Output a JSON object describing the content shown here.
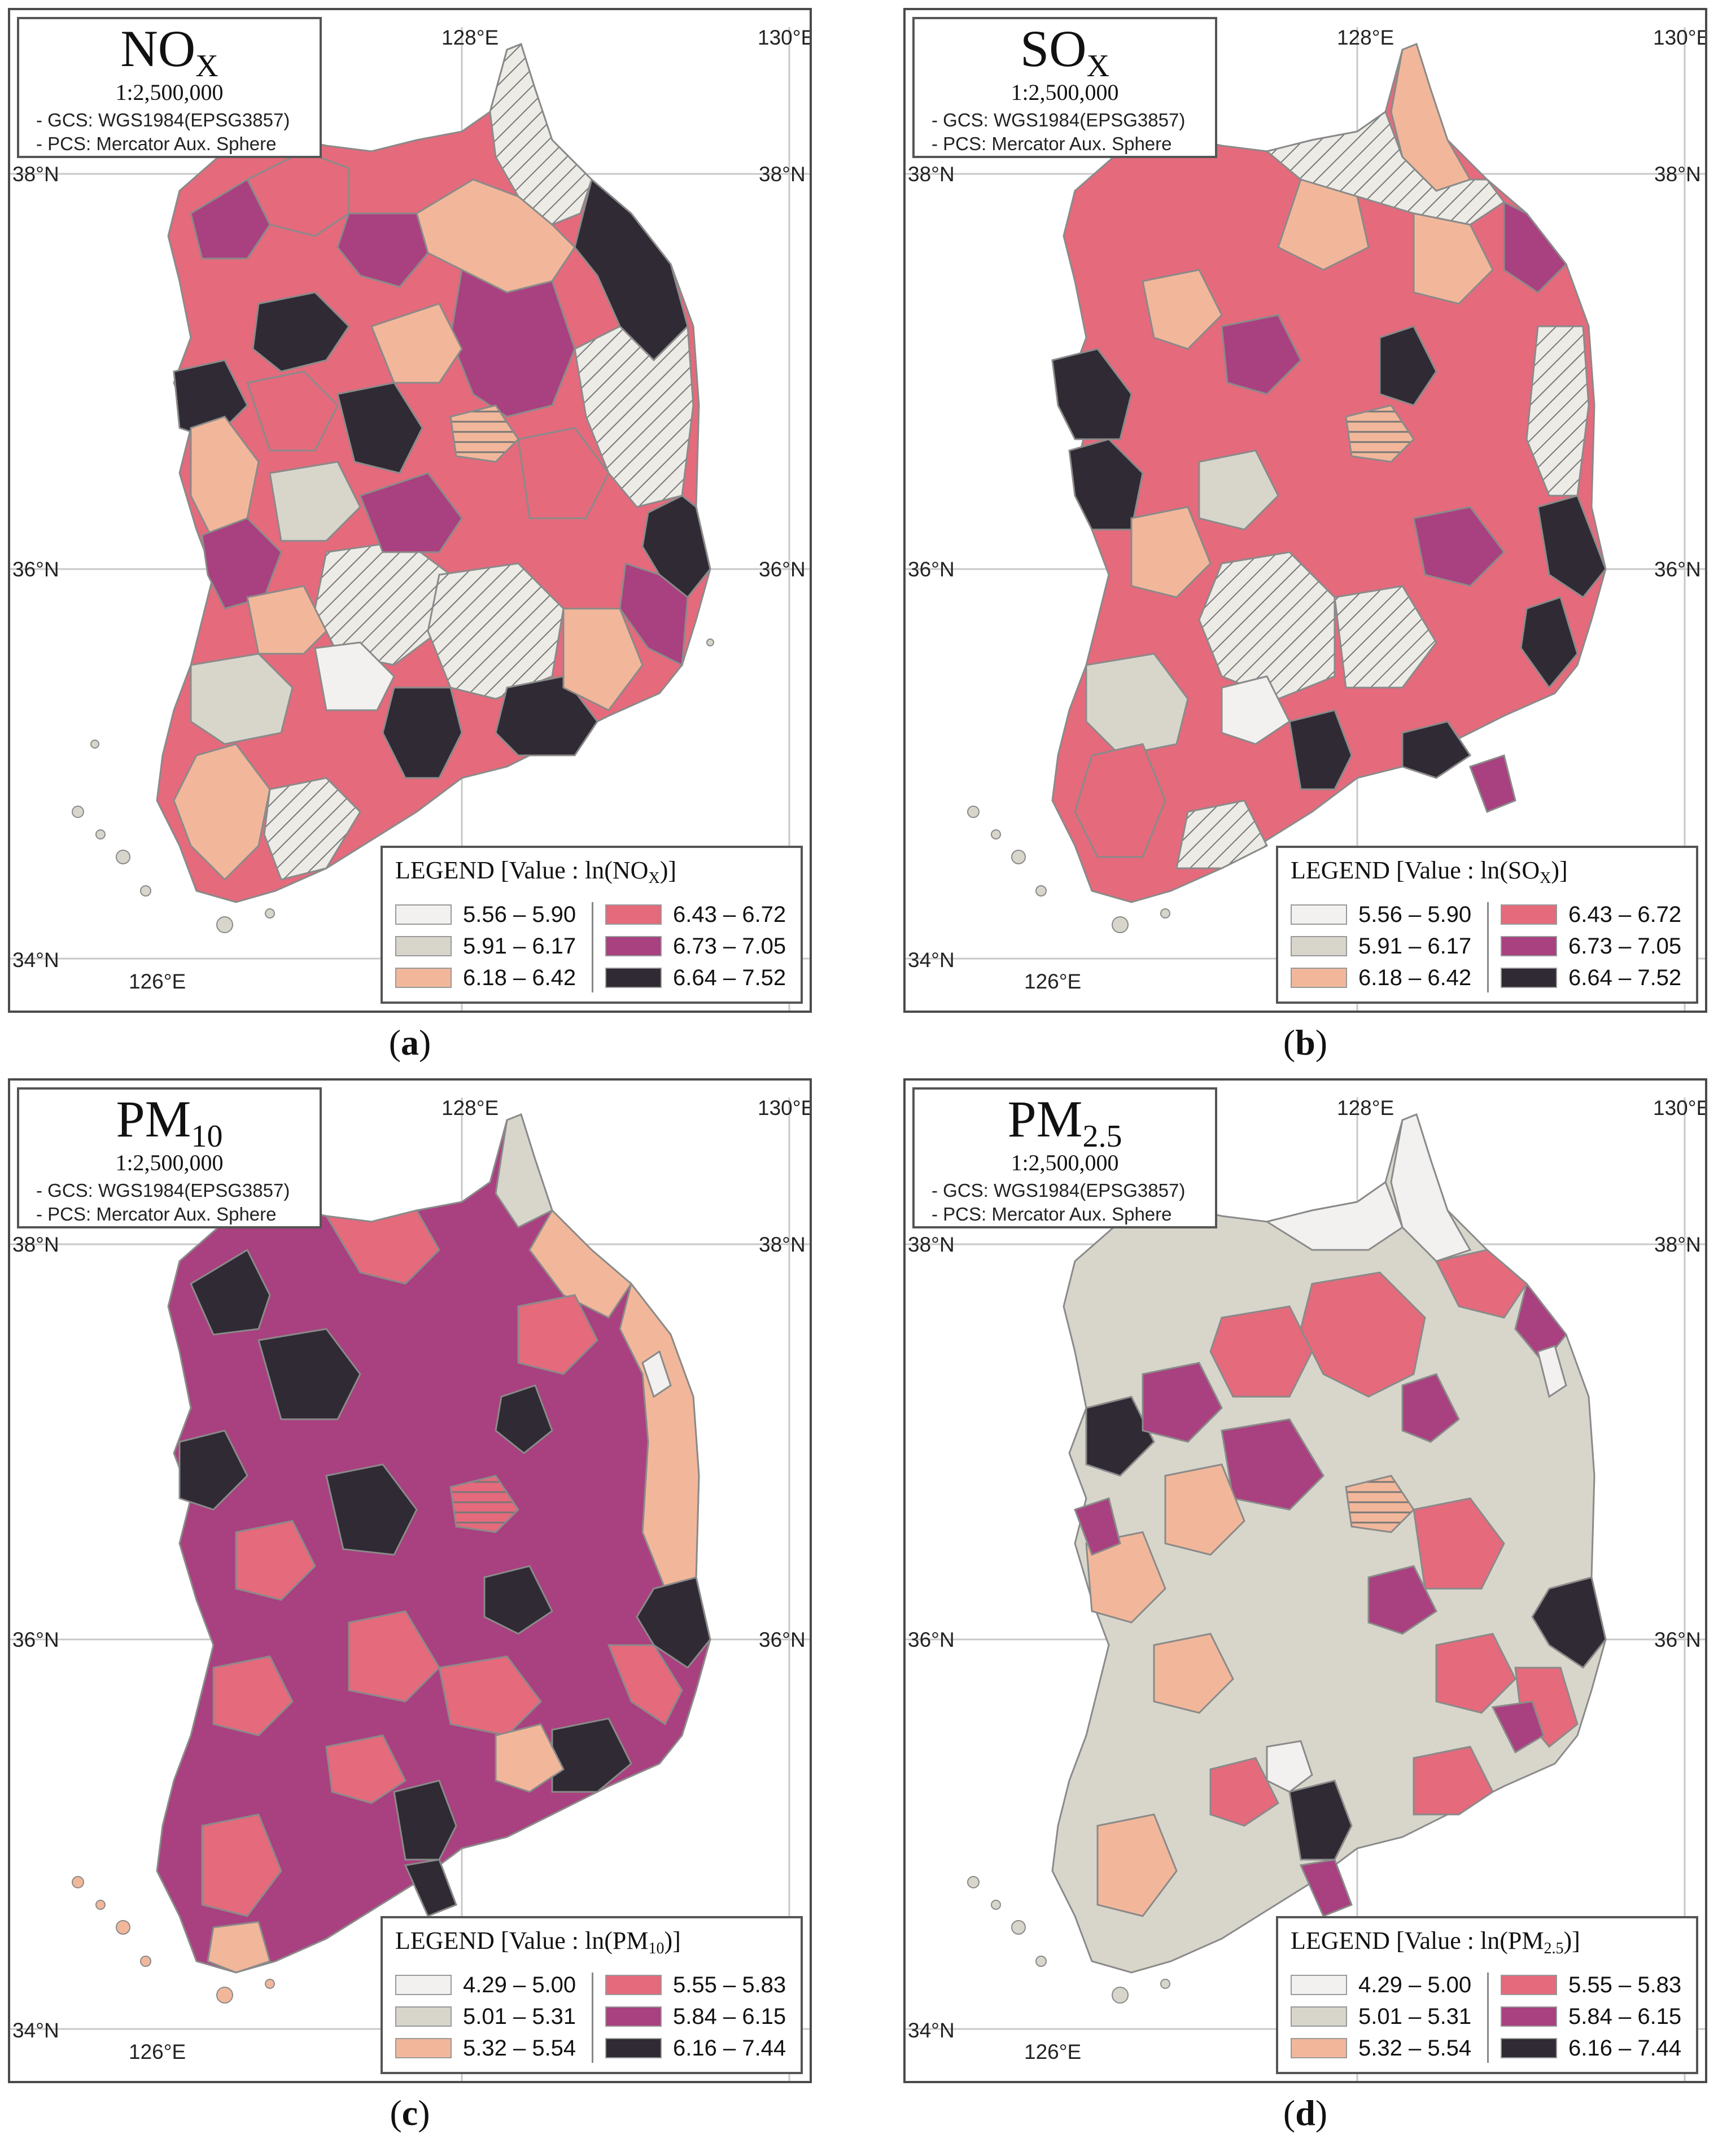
{
  "panels": [
    {
      "caption_open": "(",
      "caption_letter": "a",
      "caption_close": ")",
      "title_main": "NO",
      "title_sub": "X",
      "scale": "1:2,500,000",
      "gcs": "- GCS: WGS1984(EPSG3857)",
      "pcs": "- PCS: Mercator Aux. Sphere",
      "legend_title": "LEGEND [Value : ln(NO",
      "legend_title_sub": "X",
      "legend_title_end": ")]",
      "legend_items": [
        "5.56 – 5.90",
        "5.91 – 6.17",
        "6.18 – 6.42",
        "6.43 – 6.72",
        "6.73 – 7.05",
        "6.64 – 7.52"
      ]
    },
    {
      "caption_open": "(",
      "caption_letter": "b",
      "caption_close": ")",
      "title_main": "SO",
      "title_sub": "X",
      "scale": "1:2,500,000",
      "gcs": "- GCS: WGS1984(EPSG3857)",
      "pcs": "- PCS: Mercator Aux. Sphere",
      "legend_title": "LEGEND [Value : ln(SO",
      "legend_title_sub": "X",
      "legend_title_end": ")]",
      "legend_items": [
        "5.56 – 5.90",
        "5.91 – 6.17",
        "6.18 – 6.42",
        "6.43 – 6.72",
        "6.73 – 7.05",
        "6.64 – 7.52"
      ]
    },
    {
      "caption_open": "(",
      "caption_letter": "c",
      "caption_close": ")",
      "title_main": "PM",
      "title_sub": "10",
      "scale": "1:2,500,000",
      "gcs": "- GCS: WGS1984(EPSG3857)",
      "pcs": "- PCS: Mercator Aux. Sphere",
      "legend_title": "LEGEND [Value : ln(PM",
      "legend_title_sub": "10",
      "legend_title_end": ")]",
      "legend_items": [
        "4.29 – 5.00",
        "5.01 – 5.31",
        "5.32 – 5.54",
        "5.55 – 5.83",
        "5.84 – 6.15",
        "6.16 – 7.44"
      ]
    },
    {
      "caption_open": "(",
      "caption_letter": "d",
      "caption_close": ")",
      "title_main": "PM",
      "title_sub": "2.5",
      "scale": "1:2,500,000",
      "gcs": "- GCS: WGS1984(EPSG3857)",
      "pcs": "- PCS: Mercator Aux. Sphere",
      "legend_title": "LEGEND  [Value : ln(PM",
      "legend_title_sub": "2.5",
      "legend_title_end": ")]",
      "legend_items": [
        "4.29 – 5.00",
        "5.01 – 5.31",
        "5.32 – 5.54",
        "5.55 – 5.83",
        "5.84 – 6.15",
        "6.16 – 7.44"
      ]
    }
  ],
  "coords": {
    "lon_128": "128°E",
    "lon_130": "130°E",
    "lon_126": "126°E",
    "lat_38": "38°N",
    "lat_36": "36°N",
    "lat_34": "34°N"
  },
  "class_colors": [
    "#f2f1f0",
    "#d8d6cb",
    "#f2b79a",
    "#e56a7c",
    "#a9407f",
    "#2f2a33"
  ],
  "no_data_pattern": "diagonal-hatch"
}
